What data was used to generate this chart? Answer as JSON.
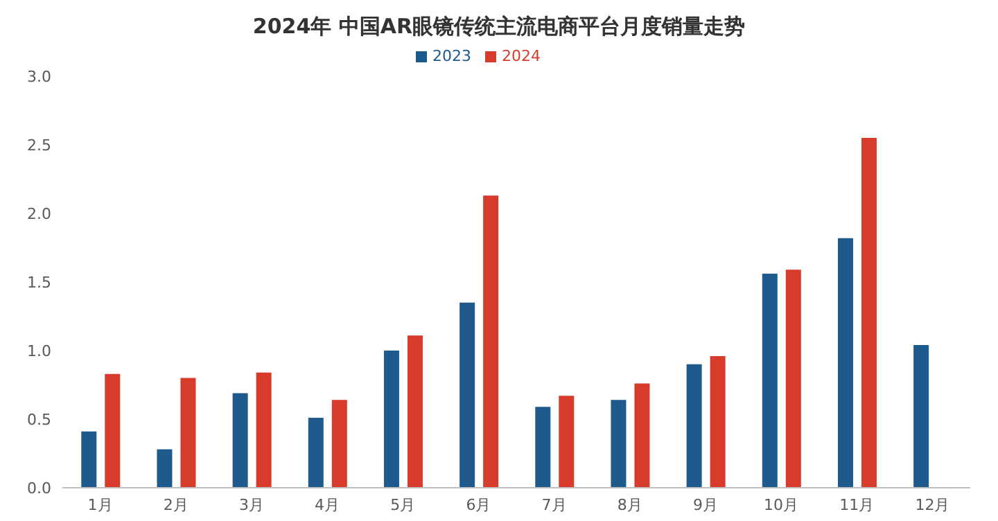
{
  "chart_data": {
    "type": "bar",
    "title": "2024年 中国AR眼镜传统主流电商平台月度销量走势",
    "categories": [
      "1月",
      "2月",
      "3月",
      "4月",
      "5月",
      "6月",
      "7月",
      "8月",
      "9月",
      "10月",
      "11月",
      "12月"
    ],
    "series": [
      {
        "name": "2023",
        "color": "#1f5a8c",
        "values": [
          0.41,
          0.28,
          0.69,
          0.51,
          1.0,
          1.35,
          0.59,
          0.64,
          0.9,
          1.56,
          1.82,
          1.04
        ]
      },
      {
        "name": "2024",
        "color": "#d63b2b",
        "values": [
          0.83,
          0.8,
          0.84,
          0.64,
          1.11,
          2.13,
          0.67,
          0.76,
          0.96,
          1.59,
          2.55,
          null
        ]
      }
    ],
    "ylim": [
      0,
      3
    ],
    "yticks": [
      {
        "value": 0,
        "label": "0.0"
      },
      0.5,
      {
        "value": 1,
        "label": "1.0"
      },
      1.5,
      {
        "value": 2,
        "label": "2.0"
      },
      2.5,
      {
        "value": 3,
        "label": "3.0"
      }
    ],
    "grid": false,
    "legend": "top"
  }
}
